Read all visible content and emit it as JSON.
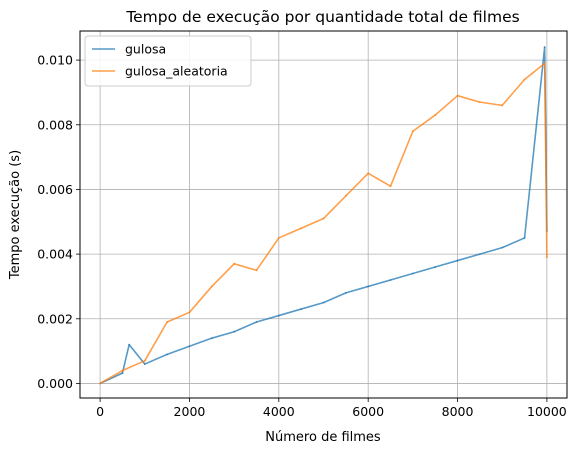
{
  "chart_data": {
    "type": "line",
    "title": "Tempo de execução por quantidade total de filmes",
    "xlabel": "Número de filmes",
    "ylabel": "Tempo execução (s)",
    "xlim": [
      -450,
      10450
    ],
    "ylim": [
      -0.00045,
      0.0109
    ],
    "xticks": [
      0,
      2000,
      4000,
      6000,
      8000,
      10000
    ],
    "xtick_labels": [
      "0",
      "2000",
      "4000",
      "6000",
      "8000",
      "10000"
    ],
    "yticks": [
      0.0,
      0.002,
      0.004,
      0.006,
      0.008,
      0.01
    ],
    "ytick_labels": [
      "0.000",
      "0.002",
      "0.004",
      "0.006",
      "0.008",
      "0.010"
    ],
    "grid": true,
    "legend_position": "top-left",
    "colors": {
      "gulosa": "#1f77b4",
      "gulosa_aleatoria": "#ff7f0e"
    },
    "series": [
      {
        "name": "gulosa",
        "x": [
          0,
          500,
          650,
          1000,
          1500,
          2000,
          2500,
          3000,
          3500,
          4000,
          4500,
          5000,
          5500,
          6000,
          6500,
          7000,
          7500,
          8000,
          8500,
          9000,
          9500,
          9950,
          10000
        ],
        "y": [
          0.0,
          0.00032,
          0.0012,
          0.0006,
          0.0009,
          0.00115,
          0.0014,
          0.0016,
          0.0019,
          0.0021,
          0.0023,
          0.0025,
          0.0028,
          0.003,
          0.0032,
          0.0034,
          0.0036,
          0.0038,
          0.004,
          0.0042,
          0.0045,
          0.0104,
          0.0047
        ]
      },
      {
        "name": "gulosa_aleatoria",
        "x": [
          0,
          500,
          1000,
          1500,
          2000,
          2500,
          3000,
          3500,
          4000,
          4500,
          5000,
          5500,
          6000,
          6500,
          7000,
          7500,
          8000,
          8500,
          9000,
          9500,
          9950,
          10000
        ],
        "y": [
          0.0,
          0.0004,
          0.0007,
          0.0019,
          0.0022,
          0.003,
          0.0037,
          0.0035,
          0.0045,
          0.0048,
          0.0051,
          0.0058,
          0.0065,
          0.0061,
          0.0078,
          0.0083,
          0.0089,
          0.0087,
          0.0086,
          0.0094,
          0.0099,
          0.0039
        ]
      }
    ]
  }
}
